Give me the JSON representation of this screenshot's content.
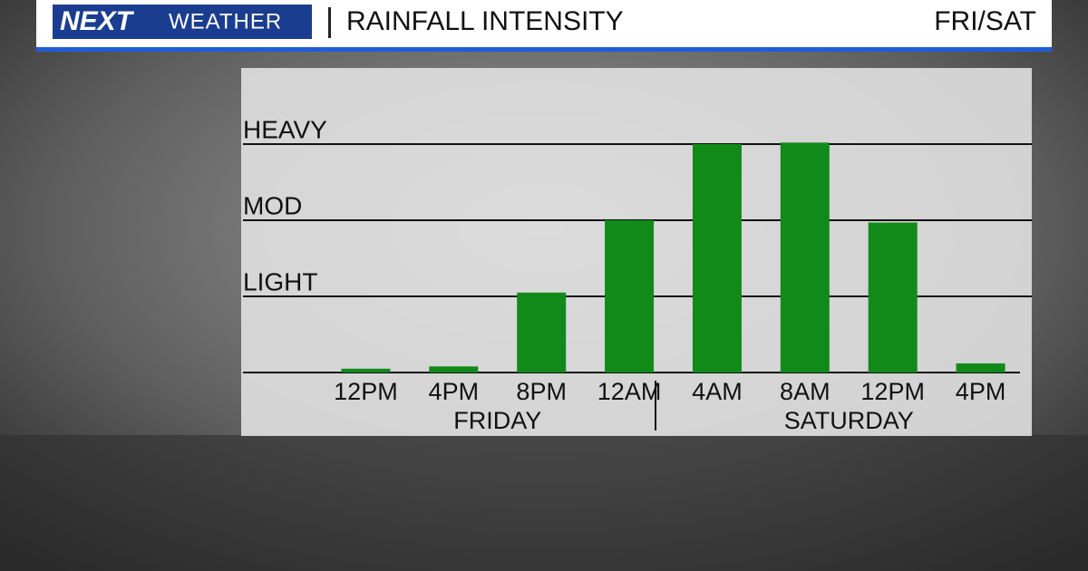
{
  "chart_data": {
    "type": "bar",
    "logo": "NEXT",
    "logo_sub": "WEATHER",
    "title": "RAINFALL INTENSITY",
    "period": "FRI/SAT",
    "categories": [
      "12PM",
      "4PM",
      "8PM",
      "12AM",
      "4AM",
      "8AM",
      "12PM",
      "4PM"
    ],
    "group_labels": [
      "FRIDAY",
      "SATURDAY"
    ],
    "values": [
      0.05,
      0.08,
      1.05,
      2.0,
      3.0,
      3.02,
      1.97,
      0.12
    ],
    "color": "#118a1a",
    "ylim": [
      0,
      4
    ],
    "yticks": [
      {
        "value": 1,
        "label": "LIGHT"
      },
      {
        "value": 2,
        "label": "MOD"
      },
      {
        "value": 3,
        "label": "HEAVY"
      }
    ],
    "grid": true
  }
}
